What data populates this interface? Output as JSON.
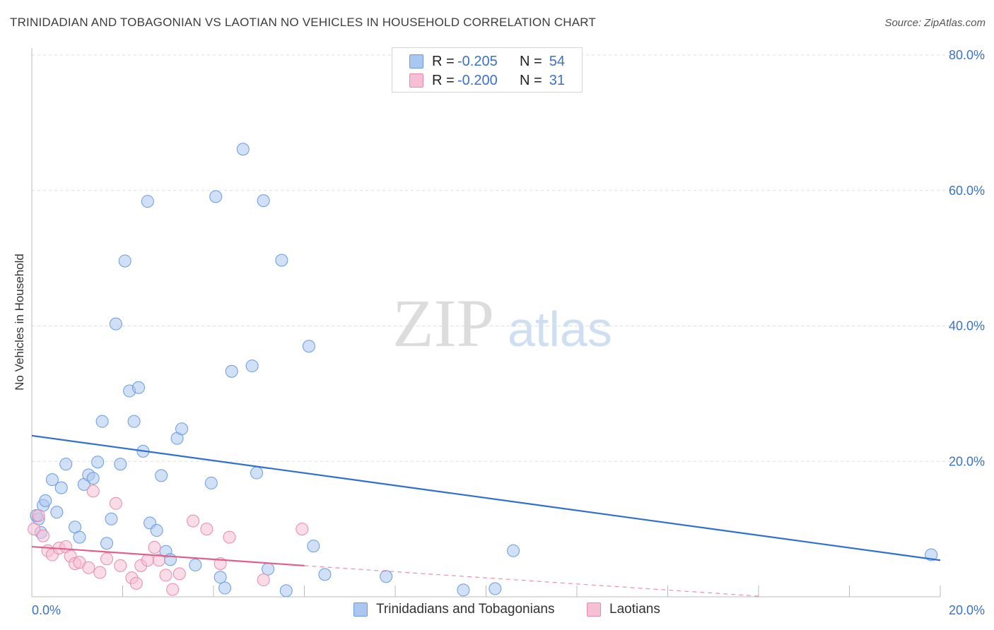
{
  "header": {
    "title": "TRINIDADIAN AND TOBAGONIAN VS LAOTIAN NO VEHICLES IN HOUSEHOLD CORRELATION CHART",
    "source": "Source: ZipAtlas.com"
  },
  "watermark": {
    "zip": "ZIP",
    "atlas": "atlas"
  },
  "stats": [
    {
      "r_label": "R =",
      "r_value": "-0.205",
      "n_label": "N =",
      "n_value": "54",
      "color": "#a9c7f0",
      "stroke": "#6a9be0"
    },
    {
      "r_label": "R =",
      "r_value": "-0.200",
      "n_label": "N =",
      "n_value": "31",
      "color": "#f6bfd3",
      "stroke": "#e88aae"
    }
  ],
  "legend": [
    {
      "label": "Trinidadians and Tobagonians",
      "color": "#a9c7f0",
      "stroke": "#6a9be0"
    },
    {
      "label": "Laotians",
      "color": "#f6bfd3",
      "stroke": "#e88aae"
    }
  ],
  "chart_data": {
    "type": "scatter",
    "title": "TRINIDADIAN AND TOBAGONIAN VS LAOTIAN NO VEHICLES IN HOUSEHOLD CORRELATION CHART",
    "xlabel": "",
    "ylabel": "No Vehicles in Household",
    "xlim": [
      0,
      20
    ],
    "ylim": [
      0,
      80
    ],
    "x_tick_labels": [
      "0.0%",
      "20.0%"
    ],
    "y_ticks": [
      20,
      40,
      60,
      80
    ],
    "y_tick_labels": [
      "20.0%",
      "40.0%",
      "60.0%",
      "80.0%"
    ],
    "grid": true,
    "series": [
      {
        "name": "Trinidadians and Tobagonians",
        "color": "#a9c7f0",
        "stroke": "#6a9be0",
        "trend": {
          "x": [
            0,
            20
          ],
          "y": [
            23.8,
            5.4
          ],
          "color": "#2f6fd0"
        },
        "points": [
          [
            0.15,
            11.5
          ],
          [
            0.25,
            13.5
          ],
          [
            0.3,
            14.2
          ],
          [
            0.45,
            17.3
          ],
          [
            0.55,
            12.5
          ],
          [
            0.65,
            16.1
          ],
          [
            0.75,
            19.6
          ],
          [
            0.95,
            10.3
          ],
          [
            1.05,
            8.8
          ],
          [
            1.15,
            16.6
          ],
          [
            1.25,
            18.0
          ],
          [
            1.35,
            17.5
          ],
          [
            1.45,
            19.9
          ],
          [
            1.55,
            25.9
          ],
          [
            1.65,
            7.9
          ],
          [
            1.75,
            11.5
          ],
          [
            1.85,
            40.3
          ],
          [
            1.95,
            19.6
          ],
          [
            2.05,
            49.6
          ],
          [
            2.15,
            30.4
          ],
          [
            2.25,
            25.9
          ],
          [
            2.35,
            30.9
          ],
          [
            2.45,
            21.5
          ],
          [
            2.55,
            58.4
          ],
          [
            2.6,
            10.9
          ],
          [
            2.75,
            9.8
          ],
          [
            2.85,
            17.9
          ],
          [
            2.95,
            6.7
          ],
          [
            3.05,
            5.5
          ],
          [
            3.2,
            23.4
          ],
          [
            3.3,
            24.8
          ],
          [
            3.6,
            4.7
          ],
          [
            3.95,
            16.8
          ],
          [
            4.05,
            59.1
          ],
          [
            4.15,
            2.9
          ],
          [
            4.25,
            1.3
          ],
          [
            4.4,
            33.3
          ],
          [
            4.65,
            66.1
          ],
          [
            4.85,
            34.1
          ],
          [
            4.95,
            18.3
          ],
          [
            5.1,
            58.5
          ],
          [
            5.2,
            4.1
          ],
          [
            5.5,
            49.7
          ],
          [
            5.6,
            0.9
          ],
          [
            6.1,
            37.0
          ],
          [
            6.2,
            7.5
          ],
          [
            6.45,
            3.3
          ],
          [
            7.8,
            3.0
          ],
          [
            9.5,
            1.0
          ],
          [
            10.2,
            1.2
          ],
          [
            10.6,
            6.8
          ],
          [
            19.8,
            6.2
          ],
          [
            0.1,
            12.0
          ],
          [
            0.2,
            9.5
          ]
        ]
      },
      {
        "name": "Laotians",
        "color": "#f6bfd3",
        "stroke": "#e88aae",
        "trend": {
          "x": [
            0,
            6.0
          ],
          "y": [
            7.4,
            4.6
          ],
          "color": "#e0608d",
          "dashed_extension_to": [
            16,
            0.1
          ]
        },
        "points": [
          [
            0.05,
            10.0
          ],
          [
            0.15,
            12.0
          ],
          [
            0.25,
            9.0
          ],
          [
            0.35,
            6.8
          ],
          [
            0.45,
            6.2
          ],
          [
            0.6,
            7.2
          ],
          [
            0.75,
            7.4
          ],
          [
            0.85,
            6.0
          ],
          [
            0.95,
            4.9
          ],
          [
            1.05,
            5.1
          ],
          [
            1.25,
            4.3
          ],
          [
            1.35,
            15.6
          ],
          [
            1.5,
            3.6
          ],
          [
            1.65,
            5.6
          ],
          [
            1.85,
            13.8
          ],
          [
            1.95,
            4.6
          ],
          [
            2.2,
            2.8
          ],
          [
            2.3,
            2.0
          ],
          [
            2.4,
            4.6
          ],
          [
            2.55,
            5.4
          ],
          [
            2.7,
            7.3
          ],
          [
            2.8,
            5.4
          ],
          [
            2.95,
            3.2
          ],
          [
            3.1,
            1.1
          ],
          [
            3.25,
            3.4
          ],
          [
            3.55,
            11.2
          ],
          [
            3.85,
            10.0
          ],
          [
            4.15,
            4.9
          ],
          [
            4.35,
            8.8
          ],
          [
            5.1,
            2.5
          ],
          [
            5.95,
            10.0
          ]
        ]
      }
    ]
  }
}
